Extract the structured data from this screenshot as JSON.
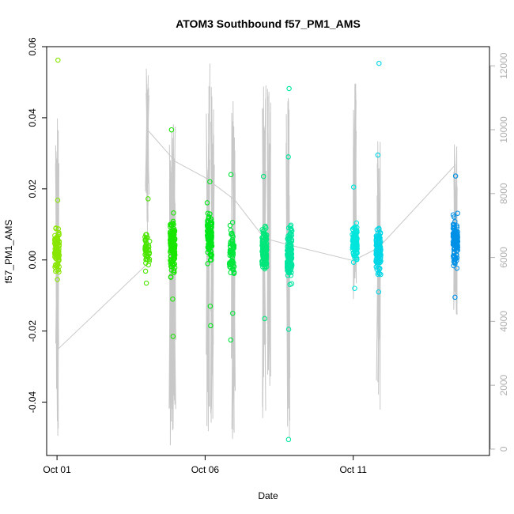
{
  "chart_data": {
    "type": "scatter",
    "title": "ATOM3 Southbound f57_PM1_AMS",
    "xlabel": "Date",
    "ylabel": "f57_PM1_AMS",
    "x_ticks": [
      {
        "label": "Oct 01",
        "day": 1
      },
      {
        "label": "Oct 06",
        "day": 6
      },
      {
        "label": "Oct 11",
        "day": 11
      }
    ],
    "xlim_days": [
      0.65,
      15.6
    ],
    "ylim": [
      -0.055,
      0.06
    ],
    "y_ticks": [
      "-0.04",
      "-0.02",
      "0.00",
      "0.02",
      "0.04",
      "0.06"
    ],
    "y2lim": [
      -200,
      12600
    ],
    "y2_ticks": [
      "0",
      "2000",
      "4000",
      "6000",
      "8000",
      "10000",
      "12000"
    ],
    "grid": false,
    "legend": "none",
    "colors": {
      "altitude_line": "#c8c8c8",
      "axis": "#000000",
      "right_axis": "#b0b0b0"
    },
    "clusters": [
      {
        "day": 1.0,
        "center": 0.003,
        "spread": 0.004,
        "n": 90,
        "color": "#88e600",
        "outliers": [
          0.0562,
          0.0168,
          -0.0055
        ]
      },
      {
        "day": 4.05,
        "center": 0.003,
        "spread": 0.003,
        "n": 45,
        "color": "#4be600",
        "outliers": [
          0.0172,
          -0.0065
        ]
      },
      {
        "day": 4.9,
        "center": 0.004,
        "spread": 0.005,
        "n": 160,
        "color": "#19e600",
        "outliers": [
          0.0366,
          -0.0215,
          -0.011
        ]
      },
      {
        "day": 6.15,
        "center": 0.006,
        "spread": 0.005,
        "n": 110,
        "color": "#00e619",
        "outliers": [
          0.022,
          -0.0185,
          -0.013
        ]
      },
      {
        "day": 6.9,
        "center": 0.002,
        "spread": 0.005,
        "n": 70,
        "color": "#00e63a",
        "outliers": [
          0.024,
          -0.0225,
          -0.015
        ]
      },
      {
        "day": 8.0,
        "center": 0.003,
        "spread": 0.004,
        "n": 140,
        "color": "#00e67a",
        "outliers": [
          0.0235,
          -0.0165
        ]
      },
      {
        "day": 8.85,
        "center": 0.002,
        "spread": 0.005,
        "n": 150,
        "color": "#00e6a0",
        "outliers": [
          0.0482,
          0.029,
          -0.0505,
          -0.0195
        ]
      },
      {
        "day": 11.05,
        "center": 0.005,
        "spread": 0.004,
        "n": 100,
        "color": "#00e6dc",
        "outliers": [
          0.0205,
          -0.008
        ]
      },
      {
        "day": 11.85,
        "center": 0.003,
        "spread": 0.004,
        "n": 120,
        "color": "#00d6e6",
        "outliers": [
          0.0553,
          0.0295,
          -0.009
        ]
      },
      {
        "day": 14.45,
        "center": 0.005,
        "spread": 0.004,
        "n": 110,
        "color": "#0090e6",
        "outliers": [
          0.0236,
          -0.0105
        ]
      }
    ],
    "altitude_spikes": [
      {
        "day": 1.0,
        "high": 10700,
        "low": 0
      },
      {
        "day": 4.05,
        "high": 12150,
        "low": 7100
      },
      {
        "day": 4.85,
        "high": 10400,
        "low": 100
      },
      {
        "day": 4.95,
        "high": 10200,
        "low": 150
      },
      {
        "day": 6.1,
        "high": 12200,
        "low": 200
      },
      {
        "day": 6.25,
        "high": 11500,
        "low": 500
      },
      {
        "day": 6.95,
        "high": 11100,
        "low": 300
      },
      {
        "day": 8.0,
        "high": 11700,
        "low": 800
      },
      {
        "day": 8.15,
        "high": 11300,
        "low": 900
      },
      {
        "day": 8.8,
        "high": 11000,
        "low": 300
      },
      {
        "day": 11.05,
        "high": 11500,
        "low": 4300
      },
      {
        "day": 11.85,
        "high": 10000,
        "low": 1200
      },
      {
        "day": 14.45,
        "high": 9700,
        "low": 4100
      }
    ],
    "altitude_path": [
      {
        "day": 1.0,
        "alt": 3100
      },
      {
        "day": 4.05,
        "alt": 5800
      },
      {
        "day": 4.05,
        "alt": 10000
      },
      {
        "day": 5.0,
        "alt": 9000
      },
      {
        "day": 6.0,
        "alt": 8500
      },
      {
        "day": 7.0,
        "alt": 7800
      },
      {
        "day": 8.0,
        "alt": 6600
      },
      {
        "day": 8.8,
        "alt": 6400
      },
      {
        "day": 11.0,
        "alt": 5900
      },
      {
        "day": 11.85,
        "alt": 6300
      },
      {
        "day": 14.45,
        "alt": 8900
      }
    ]
  }
}
